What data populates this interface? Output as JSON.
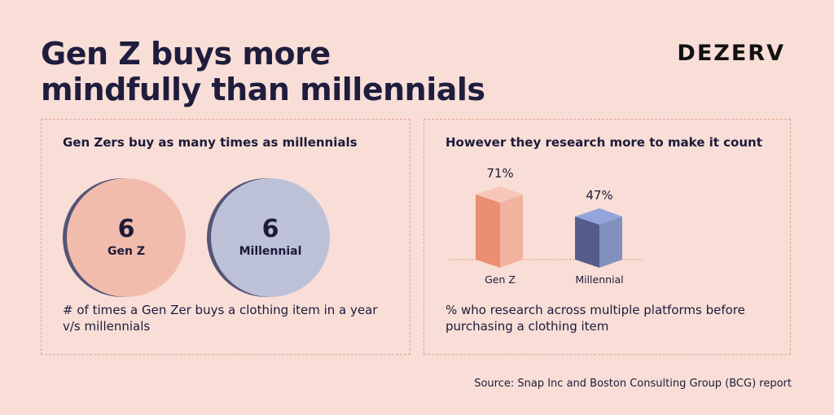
{
  "title": "Gen Z buys more mindfully than millennials",
  "brand": "DEZERV",
  "left_panel": {
    "title": "Gen Zers buy as many times as millennials",
    "caption": "# of times a Gen Zer buys a clothing item in a year v/s millennials",
    "bubbles": [
      {
        "value": "6",
        "label": "Gen Z",
        "color": "#f2bcac"
      },
      {
        "value": "6",
        "label": "Millennial",
        "color": "#bcc1d8"
      }
    ]
  },
  "right_panel": {
    "title": "However they research more to make it count",
    "caption": "% who research across multiple platforms before purchasing a clothing item"
  },
  "chart_data": {
    "type": "bar",
    "categories": [
      "Gen Z",
      "Millennial"
    ],
    "values": [
      71,
      47
    ],
    "value_labels": [
      "71%",
      "47%"
    ],
    "colors": {
      "Gen Z": {
        "front": "#ea8f73",
        "side": "#f2b2a0",
        "top": "#f6c7b9"
      },
      "Millennial": {
        "front": "#545d8a",
        "side": "#8290bd",
        "top": "#93a5dc"
      }
    }
  },
  "source": "Source: Snap Inc and Boston Consulting Group (BCG) report"
}
